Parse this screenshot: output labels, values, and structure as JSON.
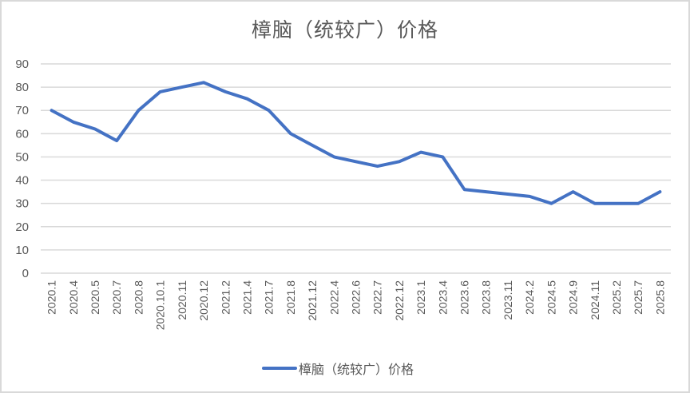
{
  "chart_data": {
    "type": "line",
    "title": "樟脑（统较广）价格",
    "xlabel": "",
    "ylabel": "",
    "ylim": [
      0,
      90
    ],
    "yticks": [
      0,
      10,
      20,
      30,
      40,
      50,
      60,
      70,
      80,
      90
    ],
    "grid": true,
    "legend_position": "bottom",
    "categories": [
      "2020.1",
      "2020.4",
      "2020.5",
      "2020.7",
      "2020.8",
      "2020.10.1",
      "2020.11",
      "2020.12",
      "2021.2",
      "2021.4",
      "2021.7",
      "2021.8",
      "2021.12",
      "2022.4",
      "2022.6",
      "2022.7",
      "2022.12",
      "2023.1",
      "2023.4",
      "2023.6",
      "2023.8",
      "2023.11",
      "2024.2",
      "2024.5",
      "2024.9",
      "2024.11",
      "2025.2",
      "2025.7",
      "2025.8"
    ],
    "series": [
      {
        "name": "樟脑（统较广）价格",
        "color": "#4472c4",
        "values": [
          70,
          65,
          62,
          57,
          70,
          78,
          80,
          82,
          78,
          75,
          70,
          60,
          55,
          50,
          48,
          46,
          48,
          52,
          50,
          36,
          35,
          34,
          33,
          30,
          35,
          30,
          30,
          30,
          35
        ]
      }
    ]
  },
  "colors": {
    "line": "#4472c4",
    "grid": "#d9d9d9",
    "text": "#595959",
    "border": "#d9d9d9"
  }
}
